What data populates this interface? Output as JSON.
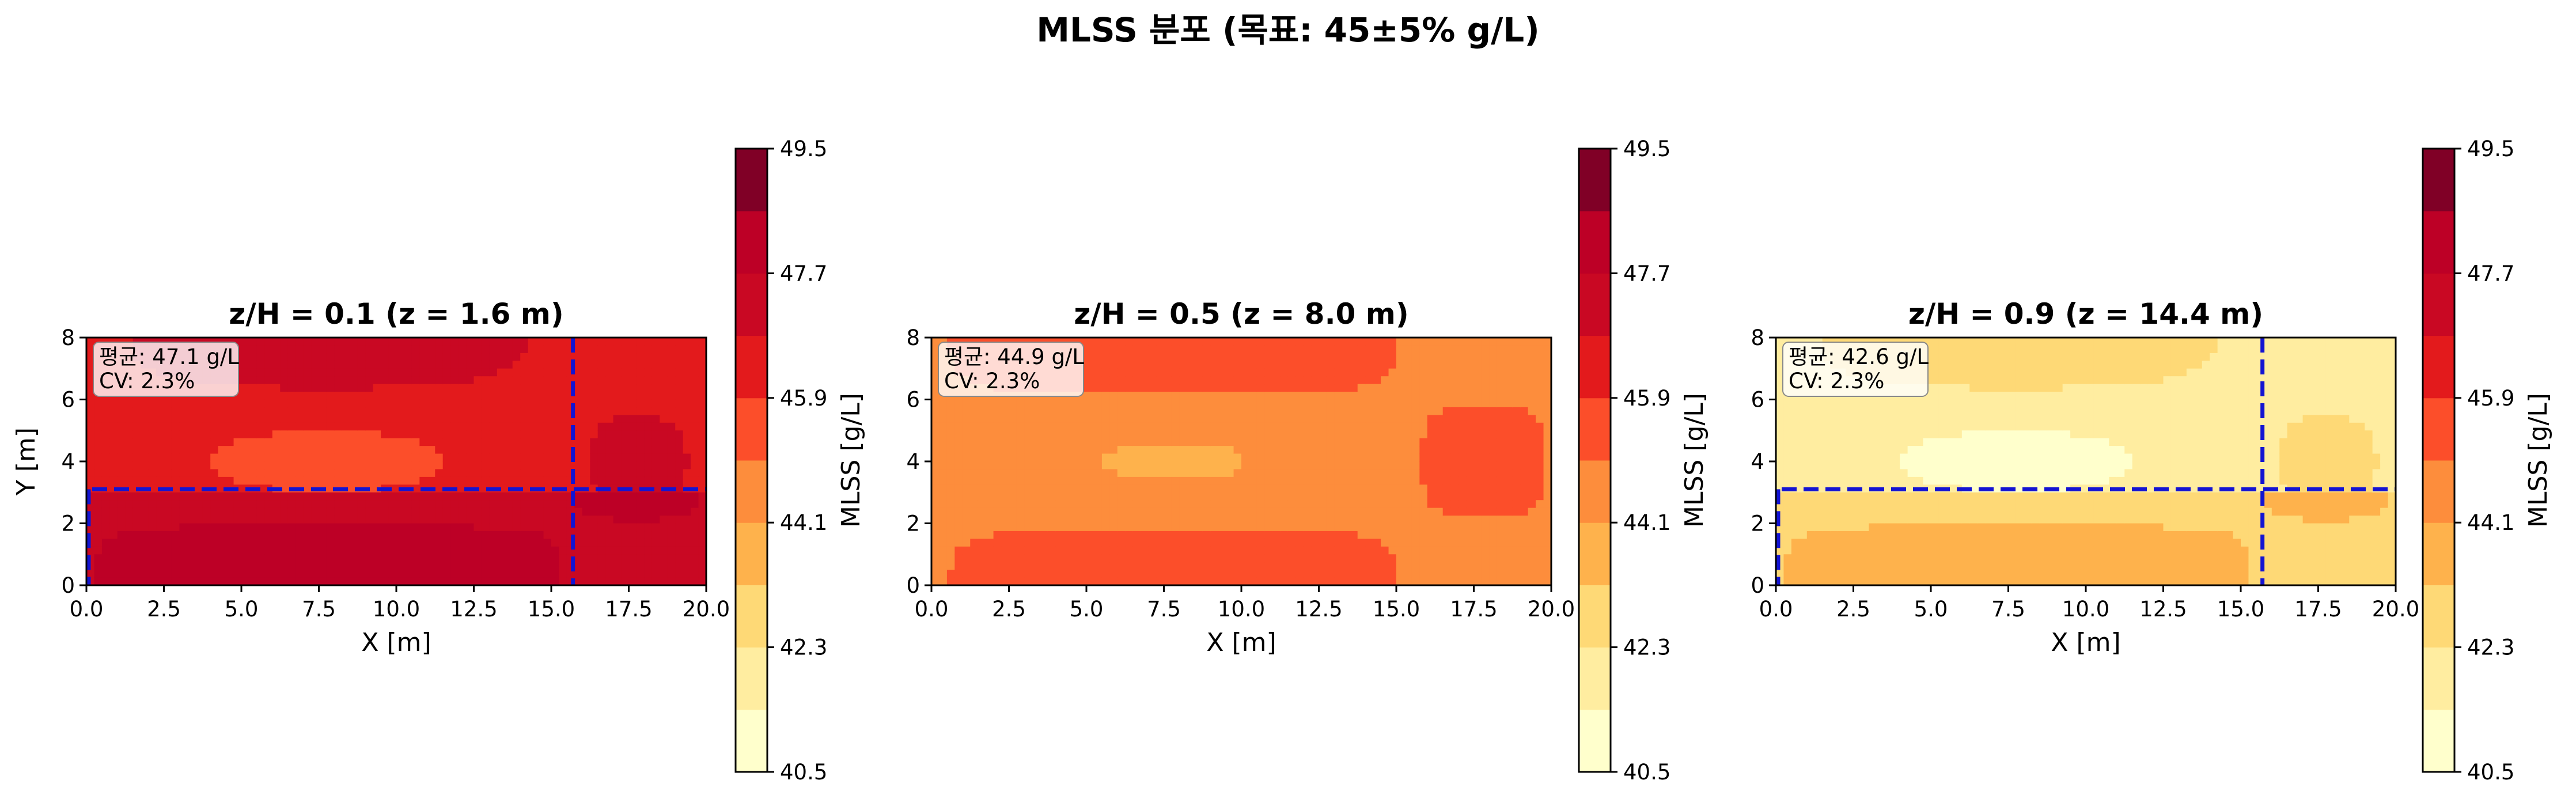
{
  "title": "MLSS 분포 (목표: 45±5% g/L)",
  "colorbar": {
    "label": "MLSS [g/L]",
    "vmin": 40.5,
    "vmax": 49.5,
    "levels": 10,
    "tick_labels": [
      "40.5",
      "42.3",
      "44.1",
      "45.9",
      "47.7",
      "49.5"
    ],
    "colors": [
      "#ffffcc",
      "#ffeda0",
      "#fed976",
      "#feb24c",
      "#fd8d3c",
      "#fc4e2a",
      "#e31a1c",
      "#c90823",
      "#bd0026",
      "#800026"
    ]
  },
  "chart_data": [
    {
      "type": "heatmap",
      "title": "z/H = 0.1 (z = 1.6 m)",
      "xlabel": "X [m]",
      "ylabel": "Y [m]",
      "xlim": [
        0,
        20
      ],
      "ylim": [
        0,
        8
      ],
      "x_ticks": [
        "0.0",
        "2.5",
        "5.0",
        "7.5",
        "10.0",
        "12.5",
        "15.0",
        "17.5",
        "20.0"
      ],
      "y_ticks": [
        "0",
        "2",
        "4",
        "6",
        "8"
      ],
      "mean_label": "평균: 47.1 g/L",
      "cv_label": "CV: 2.3%",
      "mean_value": 47.1,
      "zone_lines": {
        "x": 15.7,
        "y": 3.1
      }
    },
    {
      "type": "heatmap",
      "title": "z/H = 0.5 (z = 8.0 m)",
      "xlabel": "X [m]",
      "ylabel": "",
      "xlim": [
        0,
        20
      ],
      "ylim": [
        0,
        8
      ],
      "x_ticks": [
        "0.0",
        "2.5",
        "5.0",
        "7.5",
        "10.0",
        "12.5",
        "15.0",
        "17.5",
        "20.0"
      ],
      "y_ticks": [
        "0",
        "2",
        "4",
        "6",
        "8"
      ],
      "mean_label": "평균: 44.9 g/L",
      "cv_label": "CV: 2.3%",
      "mean_value": 44.9,
      "zone_lines": null
    },
    {
      "type": "heatmap",
      "title": "z/H = 0.9 (z = 14.4 m)",
      "xlabel": "X [m]",
      "ylabel": "",
      "xlim": [
        0,
        20
      ],
      "ylim": [
        0,
        8
      ],
      "x_ticks": [
        "0.0",
        "2.5",
        "5.0",
        "7.5",
        "10.0",
        "12.5",
        "15.0",
        "17.5",
        "20.0"
      ],
      "y_ticks": [
        "0",
        "2",
        "4",
        "6",
        "8"
      ],
      "mean_label": "평균: 42.6 g/L",
      "cv_label": "CV: 2.3%",
      "mean_value": 42.6,
      "zone_lines": {
        "x": 15.7,
        "y": 3.1
      }
    }
  ]
}
